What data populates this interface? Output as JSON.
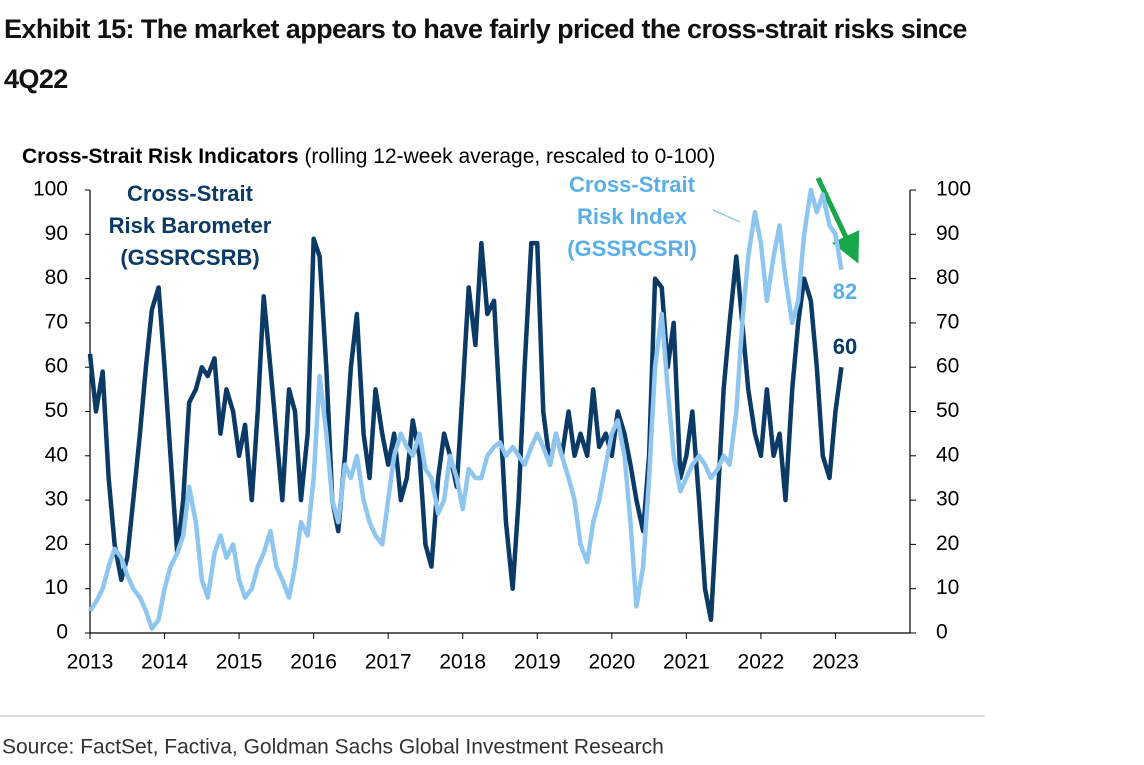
{
  "chart_data": {
    "type": "line",
    "title": "Exhibit 15: The market appears to have fairly priced the cross-strait risks since 4Q22",
    "subtitle": "Cross-Strait Risk Indicators",
    "subtitle_note": "(rolling 12-week average, rescaled to 0-100)",
    "source": "Source: FactSet, Factiva, Goldman Sachs Global Investment Research",
    "annotations": [
      {
        "lines": [
          "Cross-Strait",
          "Risk Barometer",
          "(GSSRCSRB)"
        ],
        "color": "#0b3a66"
      },
      {
        "lines": [
          "Cross-Strait",
          "Risk Index",
          "(GSSRCSRI)"
        ],
        "color": "#5aaeea"
      }
    ],
    "x": [
      2013,
      2013.08,
      2013.17,
      2013.25,
      2013.33,
      2013.42,
      2013.5,
      2013.58,
      2013.67,
      2013.75,
      2013.83,
      2013.92,
      2014,
      2014.08,
      2014.17,
      2014.25,
      2014.33,
      2014.42,
      2014.5,
      2014.58,
      2014.67,
      2014.75,
      2014.83,
      2014.92,
      2015,
      2015.08,
      2015.17,
      2015.25,
      2015.33,
      2015.42,
      2015.5,
      2015.58,
      2015.67,
      2015.75,
      2015.83,
      2015.92,
      2016,
      2016.08,
      2016.17,
      2016.25,
      2016.33,
      2016.42,
      2016.5,
      2016.58,
      2016.67,
      2016.75,
      2016.83,
      2016.92,
      2017,
      2017.08,
      2017.17,
      2017.25,
      2017.33,
      2017.42,
      2017.5,
      2017.58,
      2017.67,
      2017.75,
      2017.83,
      2017.92,
      2018,
      2018.08,
      2018.17,
      2018.25,
      2018.33,
      2018.42,
      2018.5,
      2018.58,
      2018.67,
      2018.75,
      2018.83,
      2018.92,
      2019,
      2019.08,
      2019.17,
      2019.25,
      2019.33,
      2019.42,
      2019.5,
      2019.58,
      2019.67,
      2019.75,
      2019.83,
      2019.92,
      2020,
      2020.08,
      2020.17,
      2020.25,
      2020.33,
      2020.42,
      2020.5,
      2020.58,
      2020.67,
      2020.75,
      2020.83,
      2020.92,
      2021,
      2021.08,
      2021.17,
      2021.25,
      2021.33,
      2021.42,
      2021.5,
      2021.58,
      2021.67,
      2021.75,
      2021.83,
      2021.92,
      2022,
      2022.08,
      2022.17,
      2022.25,
      2022.33,
      2022.42,
      2022.5,
      2022.58,
      2022.67,
      2022.75,
      2022.83,
      2022.92,
      2023,
      2023.08
    ],
    "series": [
      {
        "name": "Cross-Strait Risk Barometer (GSSRCSRB)",
        "color": "#0b3a66",
        "axis": "y",
        "values": [
          63,
          50,
          59,
          35,
          20,
          12,
          17,
          30,
          45,
          60,
          73,
          78,
          60,
          40,
          18,
          30,
          52,
          55,
          60,
          58,
          62,
          45,
          55,
          50,
          40,
          47,
          30,
          50,
          76,
          60,
          45,
          30,
          55,
          50,
          30,
          45,
          89,
          85,
          60,
          30,
          23,
          40,
          60,
          72,
          45,
          35,
          55,
          45,
          38,
          45,
          30,
          35,
          48,
          40,
          20,
          15,
          35,
          45,
          40,
          33,
          55,
          78,
          65,
          88,
          72,
          75,
          50,
          25,
          10,
          30,
          60,
          88,
          88,
          50,
          38,
          45,
          40,
          50,
          40,
          45,
          40,
          55,
          42,
          45,
          40,
          50,
          45,
          38,
          30,
          23,
          40,
          80,
          78,
          60,
          70,
          35,
          40,
          50,
          30,
          10,
          3,
          30,
          55,
          70,
          85,
          70,
          55,
          45,
          40,
          55,
          40,
          45,
          30,
          55,
          70,
          80,
          75,
          60,
          40,
          35,
          50,
          60
        ]
      },
      {
        "name": "Cross-Strait Risk Index (GSSRCSRI)",
        "color": "#8ec6f0",
        "axis": "y2",
        "values": [
          5,
          7,
          10,
          15,
          19,
          17,
          13,
          10,
          8,
          5,
          1,
          3,
          10,
          15,
          18,
          22,
          33,
          25,
          12,
          8,
          18,
          22,
          17,
          20,
          12,
          8,
          10,
          15,
          18,
          23,
          15,
          12,
          8,
          15,
          25,
          22,
          35,
          58,
          45,
          30,
          25,
          38,
          35,
          40,
          30,
          25,
          22,
          20,
          30,
          40,
          45,
          42,
          40,
          45,
          37,
          35,
          27,
          30,
          40,
          35,
          28,
          37,
          35,
          35,
          40,
          42,
          43,
          40,
          42,
          40,
          38,
          42,
          45,
          42,
          38,
          45,
          40,
          35,
          30,
          20,
          16,
          25,
          30,
          38,
          45,
          48,
          40,
          25,
          6,
          15,
          35,
          60,
          72,
          55,
          40,
          32,
          35,
          38,
          40,
          38,
          35,
          37,
          40,
          38,
          50,
          70,
          85,
          95,
          88,
          75,
          85,
          92,
          80,
          70,
          75,
          90,
          100,
          95,
          99,
          92,
          90,
          82
        ]
      }
    ],
    "xlim": [
      2013,
      2024
    ],
    "xticks": [
      2013,
      2014,
      2015,
      2016,
      2017,
      2018,
      2019,
      2020,
      2021,
      2022,
      2023
    ],
    "ylim": [
      0,
      100
    ],
    "yticks": [
      0,
      10,
      20,
      30,
      40,
      50,
      60,
      70,
      80,
      90,
      100
    ],
    "y2lim": [
      0,
      100
    ],
    "y2ticks": [
      0,
      10,
      20,
      30,
      40,
      50,
      60,
      70,
      80,
      90,
      100
    ],
    "grid": false
  }
}
